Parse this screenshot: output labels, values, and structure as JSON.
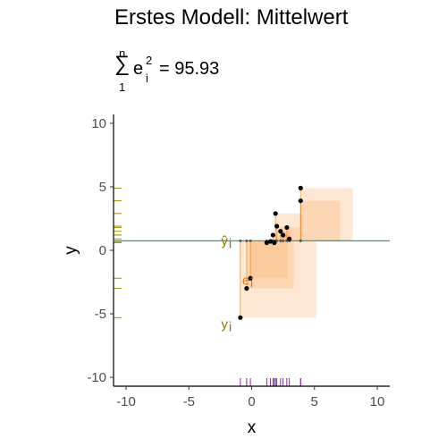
{
  "header": {
    "title": "Erstes Modell: Mittelwert",
    "formula": {
      "sum_upper": "n",
      "sum_symbol": "∑",
      "sum_lower": "1",
      "base": "e",
      "superscript": "2",
      "subscript": "i",
      "equals": "= 95.93"
    }
  },
  "chart_data": {
    "type": "scatter",
    "title": "Erstes Modell: Mittelwert",
    "xlabel": "x",
    "ylabel": "y",
    "xlim": [
      -11,
      11
    ],
    "ylim": [
      -10.7,
      10.7
    ],
    "xticks": [
      -10,
      -5,
      0,
      5,
      10
    ],
    "yticks": [
      -10,
      -5,
      0,
      5,
      10
    ],
    "grid": false,
    "mean_line": {
      "y": 0.75,
      "color": "#2aa57a"
    },
    "points": [
      {
        "x": -0.9,
        "y": -5.3
      },
      {
        "x": -0.4,
        "y": -3.0
      },
      {
        "x": -0.1,
        "y": -2.2
      },
      {
        "x": 1.2,
        "y": 0.6
      },
      {
        "x": 1.5,
        "y": 0.7
      },
      {
        "x": 1.7,
        "y": 1.2
      },
      {
        "x": 1.8,
        "y": 0.6
      },
      {
        "x": 1.9,
        "y": 2.9
      },
      {
        "x": 2.0,
        "y": 1.9
      },
      {
        "x": 2.3,
        "y": 1.5
      },
      {
        "x": 2.5,
        "y": 1.2
      },
      {
        "x": 2.8,
        "y": 1.8
      },
      {
        "x": 3.0,
        "y": 0.9
      },
      {
        "x": 3.9,
        "y": 3.9
      },
      {
        "x": 3.9,
        "y": 4.9
      }
    ],
    "residual_squares_color": "#fdae61",
    "annotations": {
      "y_hat": {
        "text": "ŷ",
        "sub": "i"
      },
      "error": {
        "text": "e",
        "sub": "i"
      },
      "y_obs": {
        "text": "y",
        "sub": "i"
      }
    },
    "colors": {
      "points": "#000000",
      "annotations_yhat": "#8a7a00",
      "annotations_e": "#e07b10",
      "rug_x": "#7b3294",
      "rug_y": "#9a9a00"
    }
  }
}
